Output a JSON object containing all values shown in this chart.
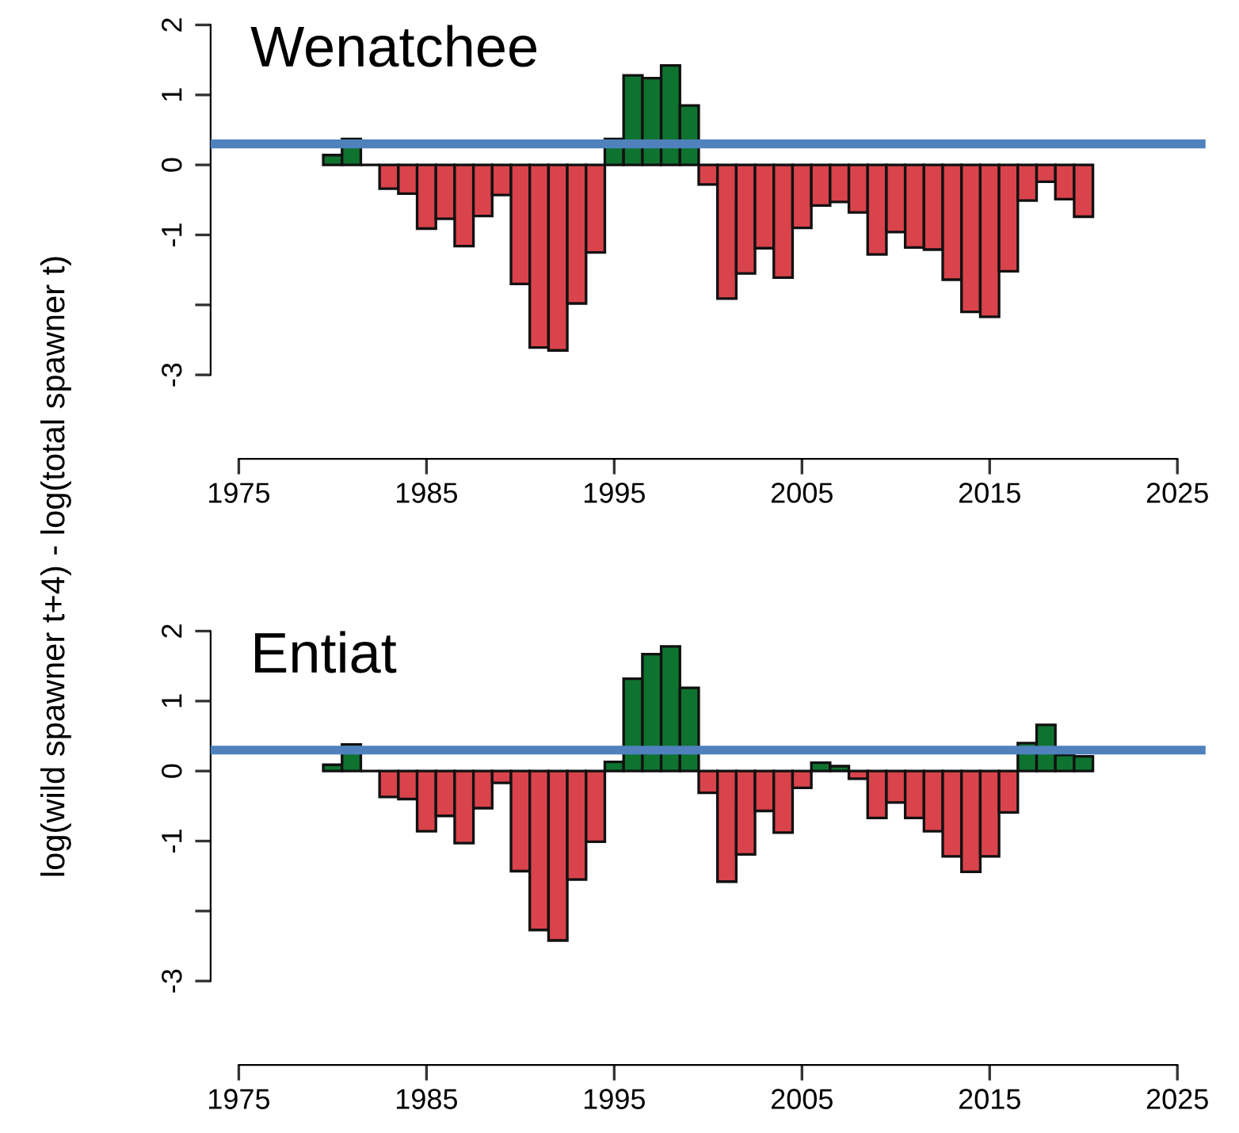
{
  "chart_data": [
    {
      "type": "bar",
      "title": "Wenatchee",
      "ylabel": "log(wild spawner t+4) - log(total spawner t)",
      "x": [
        1980,
        1981,
        1982,
        1983,
        1984,
        1985,
        1986,
        1987,
        1988,
        1989,
        1990,
        1991,
        1992,
        1993,
        1994,
        1995,
        1996,
        1997,
        1998,
        1999,
        2000,
        2001,
        2002,
        2003,
        2004,
        2005,
        2006,
        2007,
        2008,
        2009,
        2010,
        2011,
        2012,
        2013,
        2014,
        2015,
        2016,
        2017,
        2018,
        2019,
        2020
      ],
      "values": [
        0.14,
        0.37,
        0,
        -0.34,
        -0.41,
        -0.91,
        -0.77,
        -1.16,
        -0.73,
        -0.43,
        -1.7,
        -2.61,
        -2.65,
        -1.98,
        -1.25,
        0.37,
        1.28,
        1.24,
        1.42,
        0.85,
        -0.28,
        -1.91,
        -1.55,
        -1.19,
        -1.61,
        -0.9,
        -0.58,
        -0.53,
        -0.68,
        -1.28,
        -0.96,
        -1.18,
        -1.21,
        -1.64,
        -2.1,
        -2.17,
        -1.52,
        -0.51,
        -0.24,
        -0.49,
        -0.74
      ],
      "colors": [
        "#0f7330",
        "#0f7330",
        "#111111",
        "#d9434b",
        "#d9434b",
        "#d9434b",
        "#d9434b",
        "#d9434b",
        "#d9434b",
        "#d9434b",
        "#d9434b",
        "#d9434b",
        "#d9434b",
        "#d9434b",
        "#d9434b",
        "#0f7330",
        "#0f7330",
        "#0f7330",
        "#0f7330",
        "#0f7330",
        "#d9434b",
        "#d9434b",
        "#d9434b",
        "#d9434b",
        "#d9434b",
        "#d9434b",
        "#d9434b",
        "#d9434b",
        "#d9434b",
        "#d9434b",
        "#d9434b",
        "#d9434b",
        "#d9434b",
        "#d9434b",
        "#d9434b",
        "#d9434b",
        "#d9434b",
        "#d9434b",
        "#d9434b",
        "#d9434b",
        "#d9434b"
      ],
      "xlim": [
        1973.5,
        2026.5
      ],
      "xticks": [
        1975,
        1985,
        1995,
        2005,
        2015,
        2025
      ],
      "ylim": [
        -4.2,
        2
      ],
      "yticks": [
        2,
        1,
        0,
        -1,
        {
          "value": -2,
          "label": null
        },
        -3
      ],
      "ref_lines": [
        {
          "axis": "y",
          "value": 0.3,
          "color": "#4f81bd"
        }
      ],
      "grid": false,
      "legend": false
    },
    {
      "type": "bar",
      "title": "Entiat",
      "x": [
        1980,
        1981,
        1982,
        1983,
        1984,
        1985,
        1986,
        1987,
        1988,
        1989,
        1990,
        1991,
        1992,
        1993,
        1994,
        1995,
        1996,
        1997,
        1998,
        1999,
        2000,
        2001,
        2002,
        2003,
        2004,
        2005,
        2006,
        2007,
        2008,
        2009,
        2010,
        2011,
        2012,
        2013,
        2014,
        2015,
        2016,
        2017,
        2018,
        2019,
        2020
      ],
      "values": [
        0.09,
        0.38,
        0,
        -0.37,
        -0.4,
        -0.86,
        -0.64,
        -1.03,
        -0.53,
        -0.17,
        -1.43,
        -2.27,
        -2.42,
        -1.55,
        -1.01,
        0.13,
        1.32,
        1.67,
        1.78,
        1.19,
        -0.31,
        -1.58,
        -1.19,
        -0.57,
        -0.88,
        -0.24,
        0.12,
        0.07,
        -0.11,
        -0.67,
        -0.45,
        -0.67,
        -0.86,
        -1.22,
        -1.44,
        -1.22,
        -0.59,
        0.4,
        0.66,
        0.23,
        0.21
      ],
      "colors": [
        "#0f7330",
        "#0f7330",
        "#111111",
        "#d9434b",
        "#d9434b",
        "#d9434b",
        "#d9434b",
        "#d9434b",
        "#d9434b",
        "#d9434b",
        "#d9434b",
        "#d9434b",
        "#d9434b",
        "#d9434b",
        "#d9434b",
        "#0f7330",
        "#0f7330",
        "#0f7330",
        "#0f7330",
        "#0f7330",
        "#d9434b",
        "#d9434b",
        "#d9434b",
        "#d9434b",
        "#d9434b",
        "#d9434b",
        "#0f7330",
        "#0f7330",
        "#d9434b",
        "#d9434b",
        "#d9434b",
        "#d9434b",
        "#d9434b",
        "#d9434b",
        "#d9434b",
        "#d9434b",
        "#d9434b",
        "#0f7330",
        "#0f7330",
        "#0f7330",
        "#0f7330"
      ],
      "xlim": [
        1973.5,
        2026.5
      ],
      "xticks": [
        1975,
        1985,
        1995,
        2005,
        2015,
        2025
      ],
      "ylim": [
        -4.2,
        2
      ],
      "yticks": [
        2,
        1,
        0,
        -1,
        {
          "value": -2,
          "label": null
        },
        -3
      ],
      "ref_lines": [
        {
          "axis": "y",
          "value": 0.3,
          "color": "#4f81bd"
        }
      ],
      "grid": false,
      "legend": false
    }
  ]
}
